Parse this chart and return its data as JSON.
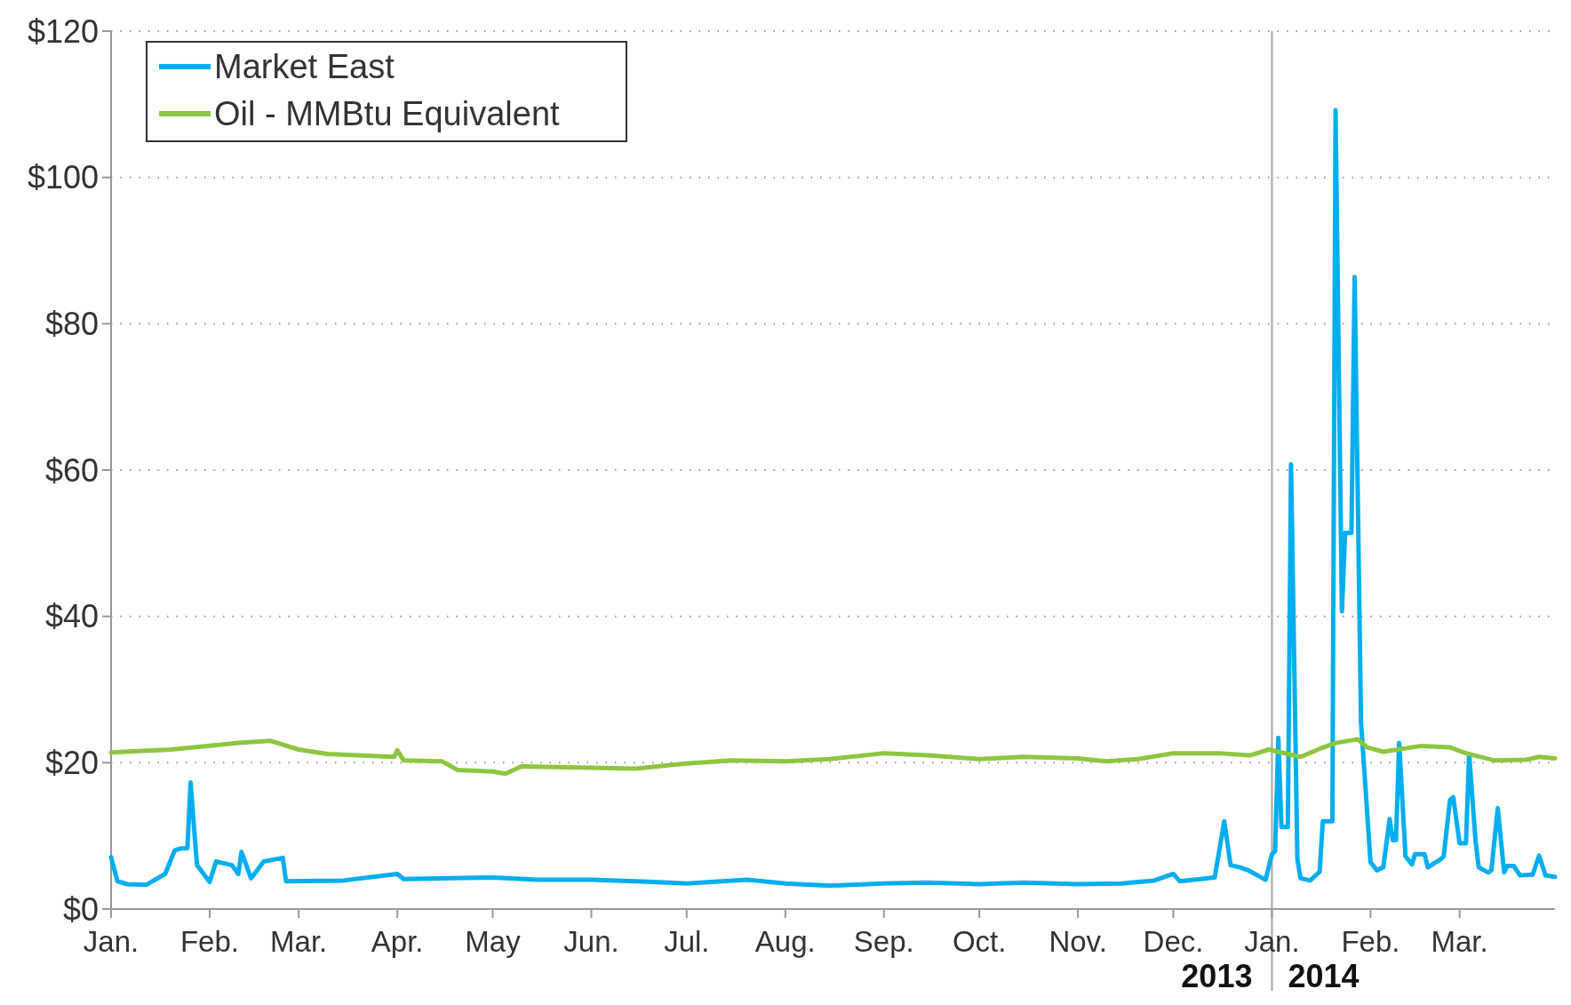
{
  "chart_data": {
    "type": "line",
    "x": [
      "2013-01-01",
      "2013-01-03",
      "2013-01-06",
      "2013-01-12",
      "2013-01-18",
      "2013-01-21",
      "2013-01-23",
      "2013-01-25",
      "2013-01-26",
      "2013-01-28",
      "2013-02-01",
      "2013-02-03",
      "2013-02-08",
      "2013-02-10",
      "2013-02-11",
      "2013-02-14",
      "2013-02-18",
      "2013-02-24",
      "2013-02-25",
      "2013-03-15",
      "2013-04-01",
      "2013-04-03",
      "2013-04-15",
      "2013-05-01",
      "2013-05-15",
      "2013-06-01",
      "2013-06-15",
      "2013-07-01",
      "2013-07-20",
      "2013-08-01",
      "2013-08-15",
      "2013-09-01",
      "2013-09-15",
      "2013-10-01",
      "2013-10-15",
      "2013-11-01",
      "2013-11-15",
      "2013-11-25",
      "2013-12-01",
      "2013-12-03",
      "2013-12-14",
      "2013-12-17",
      "2013-12-19",
      "2013-12-22",
      "2013-12-25",
      "2013-12-30",
      "2014-01-01",
      "2014-01-02",
      "2014-01-03",
      "2014-01-04",
      "2014-01-06",
      "2014-01-07",
      "2014-01-09",
      "2014-01-10",
      "2014-01-13",
      "2014-01-16",
      "2014-01-17",
      "2014-01-18",
      "2014-01-20",
      "2014-01-21",
      "2014-01-23",
      "2014-01-24",
      "2014-01-26",
      "2014-01-27",
      "2014-01-29",
      "2014-02-01",
      "2014-02-03",
      "2014-02-05",
      "2014-02-07",
      "2014-02-08",
      "2014-02-09",
      "2014-02-10",
      "2014-02-12",
      "2014-02-14",
      "2014-02-15",
      "2014-02-18",
      "2014-02-19",
      "2014-02-23",
      "2014-02-24",
      "2014-02-26",
      "2014-02-27",
      "2014-03-01",
      "2014-03-03",
      "2014-03-04",
      "2014-03-06",
      "2014-03-07",
      "2014-03-10",
      "2014-03-11",
      "2014-03-13",
      "2014-03-15",
      "2014-03-16",
      "2014-03-18",
      "2014-03-20",
      "2014-03-24",
      "2014-03-26",
      "2014-03-28",
      "2014-03-31"
    ],
    "series": [
      {
        "name": "Market East",
        "color": "#00aeef",
        "values": [
          7.1,
          3.8,
          3.4,
          3.3,
          4.8,
          8,
          8.3,
          8.3,
          17.3,
          6,
          3.7,
          6.5,
          6,
          4.8,
          7.8,
          4.2,
          6.5,
          7,
          3.8,
          3.9,
          4.8,
          4.1,
          4.2,
          4.3,
          4,
          4,
          3.8,
          3.5,
          4,
          3.5,
          3.2,
          3.5,
          3.6,
          3.4,
          3.6,
          3.4,
          3.5,
          3.9,
          4.8,
          3.8,
          4.3,
          12,
          6,
          5.7,
          5.2,
          4,
          7.5,
          7.9,
          23.4,
          11.2,
          11.2,
          60.8,
          6.8,
          4.2,
          3.9,
          5.1,
          12,
          12,
          12,
          109.2,
          40.7,
          51.4,
          51.4,
          86.4,
          25.6,
          6.4,
          5.3,
          5.7,
          12.3,
          9.4,
          9.4,
          22.7,
          7.2,
          6.1,
          7.5,
          7.5,
          5.7,
          6.8,
          7.2,
          14.9,
          15.3,
          9,
          9,
          21.2,
          9.4,
          5.7,
          5,
          5.3,
          13.8,
          5,
          5.9,
          5.9,
          4.6,
          4.7,
          7.3,
          4.6,
          4.4
        ]
      },
      {
        "name": "Oil - MMBtu Equivalent",
        "color": "#8dc63f",
        "x": [
          "2013-01-01",
          "2013-01-20",
          "2013-02-10",
          "2013-02-20",
          "2013-03-01",
          "2013-03-10",
          "2013-03-31",
          "2013-04-01",
          "2013-04-03",
          "2013-04-15",
          "2013-04-20",
          "2013-05-01",
          "2013-05-05",
          "2013-05-10",
          "2013-06-01",
          "2013-06-15",
          "2013-07-01",
          "2013-07-15",
          "2013-08-01",
          "2013-08-15",
          "2013-09-01",
          "2013-09-15",
          "2013-10-01",
          "2013-10-15",
          "2013-11-01",
          "2013-11-10",
          "2013-11-20",
          "2013-12-01",
          "2013-12-15",
          "2013-12-25",
          "2013-12-31",
          "2014-01-03",
          "2014-01-10",
          "2014-01-16",
          "2014-01-21",
          "2014-01-28",
          "2014-01-31",
          "2014-02-05",
          "2014-02-17",
          "2014-02-26",
          "2014-03-03",
          "2014-03-12",
          "2014-03-22",
          "2014-03-26",
          "2014-03-31"
        ],
        "values": [
          21.4,
          21.8,
          22.7,
          23,
          21.8,
          21.2,
          20.8,
          21.7,
          20.3,
          20.2,
          19,
          18.8,
          18.5,
          19.5,
          19.3,
          19.2,
          19.9,
          20.3,
          20.2,
          20.5,
          21.3,
          21,
          20.5,
          20.8,
          20.6,
          20.2,
          20.5,
          21.3,
          21.3,
          21,
          21.8,
          21.5,
          20.8,
          21.9,
          22.7,
          23.2,
          22.1,
          21.5,
          22.3,
          22.1,
          21.3,
          20.3,
          20.4,
          20.8,
          20.6
        ]
      }
    ],
    "xlim": [
      "2013-01-01",
      "2014-03-31"
    ],
    "xticks": [
      {
        "value": "2013-01-01",
        "label": "Jan."
      },
      {
        "value": "2013-02-01",
        "label": "Feb."
      },
      {
        "value": "2013-03-01",
        "label": "Mar."
      },
      {
        "value": "2013-04-01",
        "label": "Apr."
      },
      {
        "value": "2013-05-01",
        "label": "May"
      },
      {
        "value": "2013-06-01",
        "label": "Jun."
      },
      {
        "value": "2013-07-01",
        "label": "Jul."
      },
      {
        "value": "2013-08-01",
        "label": "Aug."
      },
      {
        "value": "2013-09-01",
        "label": "Sep."
      },
      {
        "value": "2013-10-01",
        "label": "Oct."
      },
      {
        "value": "2013-11-01",
        "label": "Nov."
      },
      {
        "value": "2013-12-01",
        "label": "Dec."
      },
      {
        "value": "2014-01-01",
        "label": "Jan."
      },
      {
        "value": "2014-02-01",
        "label": "Feb."
      },
      {
        "value": "2014-03-01",
        "label": "Mar."
      }
    ],
    "ylim": [
      0,
      120
    ],
    "yticks": [
      {
        "value": 0,
        "label": "$0"
      },
      {
        "value": 20,
        "label": "$20"
      },
      {
        "value": 40,
        "label": "$40"
      },
      {
        "value": 60,
        "label": "$60"
      },
      {
        "value": 80,
        "label": "$80"
      },
      {
        "value": 100,
        "label": "$100"
      },
      {
        "value": 120,
        "label": "$120"
      }
    ],
    "ref_lines": [
      {
        "axis": "x",
        "value": "2014-01-01",
        "color": "#a6a6a6"
      }
    ],
    "annotations": [
      "2013",
      "2014"
    ],
    "grid": "y",
    "legend": "top left",
    "marker": "none",
    "line_style": "solid"
  }
}
